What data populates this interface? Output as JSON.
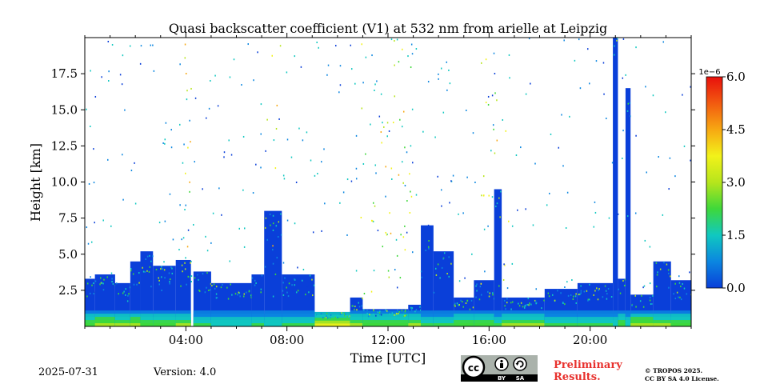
{
  "chart_data": {
    "type": "heatmap",
    "title": "Quasi backscatter coefficient (V1) at 532 nm from arielle at Leipzig",
    "xlabel": "Time [UTC]",
    "ylabel": "Height [km]",
    "xlim": [
      0,
      24
    ],
    "ylim": [
      0,
      20
    ],
    "x_ticks": [
      {
        "value": 4,
        "label": "04:00"
      },
      {
        "value": 8,
        "label": "08:00"
      },
      {
        "value": 12,
        "label": "12:00"
      },
      {
        "value": 16,
        "label": "16:00"
      },
      {
        "value": 20,
        "label": "20:00"
      }
    ],
    "y_ticks": [
      {
        "value": 2.5,
        "label": "2.5"
      },
      {
        "value": 5.0,
        "label": "5.0"
      },
      {
        "value": 7.5,
        "label": "7.5"
      },
      {
        "value": 10.0,
        "label": "10.0"
      },
      {
        "value": 12.5,
        "label": "12.5"
      },
      {
        "value": 15.0,
        "label": "15.0"
      },
      {
        "value": 17.5,
        "label": "17.5"
      }
    ],
    "colorbar": {
      "range": [
        0.0,
        6.0
      ],
      "scale_label": "1e−6",
      "ticks": [
        {
          "value": 0.0,
          "label": "0.0"
        },
        {
          "value": 1.5,
          "label": "1.5"
        },
        {
          "value": 3.0,
          "label": "3.0"
        },
        {
          "value": 4.5,
          "label": "4.5"
        },
        {
          "value": 6.0,
          "label": "6.0"
        }
      ],
      "colors": [
        "#0a3fd9",
        "#0b86e0",
        "#10c8c0",
        "#3ed83a",
        "#b6e51c",
        "#f2f21a",
        "#f7a812",
        "#f25a10",
        "#e8100c"
      ]
    },
    "regions": [
      {
        "t0": 0.0,
        "t1": 0.4,
        "top": 3.3,
        "level": 0.4
      },
      {
        "t0": 0.4,
        "t1": 1.2,
        "top": 3.6,
        "level": 0.5
      },
      {
        "t0": 1.2,
        "t1": 1.8,
        "top": 3.0,
        "level": 0.45
      },
      {
        "t0": 1.8,
        "t1": 2.2,
        "top": 4.5,
        "level": 0.5
      },
      {
        "t0": 2.2,
        "t1": 2.7,
        "top": 5.2,
        "level": 0.4
      },
      {
        "t0": 2.7,
        "t1": 3.6,
        "top": 4.2,
        "level": 0.4
      },
      {
        "t0": 3.6,
        "t1": 4.2,
        "top": 4.6,
        "level": 0.45
      },
      {
        "t0": 4.3,
        "t1": 5.0,
        "top": 3.8,
        "level": 0.35
      },
      {
        "t0": 5.0,
        "t1": 6.6,
        "top": 3.0,
        "level": 0.3
      },
      {
        "t0": 6.6,
        "t1": 7.1,
        "top": 3.6,
        "level": 0.35
      },
      {
        "t0": 7.1,
        "t1": 7.8,
        "top": 8.0,
        "level": 0.3
      },
      {
        "t0": 7.8,
        "t1": 9.1,
        "top": 3.6,
        "level": 0.35
      },
      {
        "t0": 9.1,
        "t1": 10.5,
        "top": 1.0,
        "level": 0.6
      },
      {
        "t0": 10.5,
        "t1": 11.0,
        "top": 2.0,
        "level": 0.45
      },
      {
        "t0": 11.0,
        "t1": 12.8,
        "top": 1.2,
        "level": 0.4
      },
      {
        "t0": 12.8,
        "t1": 13.3,
        "top": 1.5,
        "level": 0.45
      },
      {
        "t0": 13.3,
        "t1": 13.8,
        "top": 7.0,
        "level": 0.35
      },
      {
        "t0": 13.8,
        "t1": 14.6,
        "top": 5.2,
        "level": 0.35
      },
      {
        "t0": 14.6,
        "t1": 15.4,
        "top": 2.0,
        "level": 0.4
      },
      {
        "t0": 15.4,
        "t1": 16.2,
        "top": 3.2,
        "level": 0.4
      },
      {
        "t0": 16.2,
        "t1": 16.5,
        "top": 9.5,
        "level": 0.35
      },
      {
        "t0": 16.5,
        "t1": 18.2,
        "top": 2.0,
        "level": 0.45
      },
      {
        "t0": 18.2,
        "t1": 19.5,
        "top": 2.6,
        "level": 0.35
      },
      {
        "t0": 19.5,
        "t1": 20.9,
        "top": 3.0,
        "level": 0.35
      },
      {
        "t0": 20.9,
        "t1": 21.1,
        "top": 20.0,
        "level": 0.3
      },
      {
        "t0": 21.1,
        "t1": 21.4,
        "top": 3.3,
        "level": 0.4
      },
      {
        "t0": 21.4,
        "t1": 21.6,
        "top": 16.5,
        "level": 0.3
      },
      {
        "t0": 21.6,
        "t1": 22.5,
        "top": 2.2,
        "level": 0.5
      },
      {
        "t0": 22.5,
        "t1": 23.2,
        "top": 4.5,
        "level": 0.45
      },
      {
        "t0": 23.2,
        "t1": 24.0,
        "top": 3.2,
        "level": 0.4
      }
    ]
  },
  "footer": {
    "date": "2025-07-31",
    "version": "Version: 4.0",
    "preliminary_line1": "Preliminary",
    "preliminary_line2": "Results.",
    "copyright_line1": "© TROPOS 2025.",
    "copyright_line2": "CC BY SA 4.0 License.",
    "license_badge": {
      "by": "BY",
      "sa": "SA"
    }
  }
}
